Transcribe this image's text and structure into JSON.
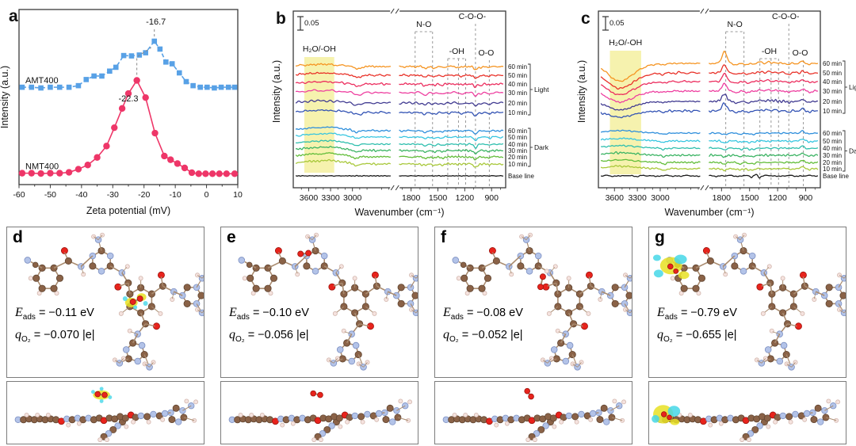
{
  "panel_letters": {
    "a": "a",
    "b": "b",
    "c": "c"
  },
  "chart_data": [
    {
      "id": "a",
      "type": "line",
      "xlabel": "Zeta potential (mV)",
      "ylabel": "Intensity (a.u.)",
      "xlim": [
        -60,
        10
      ],
      "xticks": [
        -60,
        -50,
        -40,
        -30,
        -20,
        -10,
        0,
        10
      ],
      "series": [
        {
          "name": "AMT400",
          "color": "#58a1e6",
          "marker": "square",
          "line_style": "dashed",
          "peak_label": "-16.7",
          "peak_x": -16.7,
          "x": [
            -59,
            -56,
            -53,
            -50,
            -47,
            -44,
            -41,
            -38.5,
            -36,
            -33.5,
            -31,
            -29,
            -26.5,
            -24,
            -21.5,
            -19.5,
            -16.7,
            -14.9,
            -13,
            -11,
            -8.7,
            -6.5,
            -4.3,
            -2,
            0.2,
            2.5,
            4.7,
            7,
            9
          ],
          "y": [
            0.556,
            0.556,
            0.552,
            0.556,
            0.556,
            0.556,
            0.565,
            0.6,
            0.62,
            0.62,
            0.648,
            0.67,
            0.737,
            0.735,
            0.74,
            0.753,
            0.819,
            0.774,
            0.7,
            0.69,
            0.638,
            0.588,
            0.565,
            0.556,
            0.556,
            0.552,
            0.556,
            0.556,
            0.556
          ]
        },
        {
          "name": "NMT400",
          "color": "#ee3668",
          "marker": "circle",
          "line_style": "solid",
          "peak_label": "-22.3",
          "peak_x": -22.3,
          "x": [
            -59,
            -56,
            -53,
            -50,
            -47,
            -44,
            -41,
            -38,
            -35,
            -32,
            -29.5,
            -27,
            -25,
            -22.3,
            -19.5,
            -16.5,
            -13.5,
            -11.5,
            -9.3,
            -7,
            -4.7,
            -2.5,
            -0.3,
            1.9,
            4.1,
            6.4,
            9
          ],
          "y": [
            0.065,
            0.065,
            0.063,
            0.065,
            0.065,
            0.07,
            0.088,
            0.112,
            0.155,
            0.22,
            0.325,
            0.435,
            0.52,
            0.595,
            0.497,
            0.294,
            0.163,
            0.142,
            0.12,
            0.095,
            0.068,
            0.062,
            0.062,
            0.062,
            0.062,
            0.062,
            0.062
          ]
        }
      ]
    },
    {
      "id": "b",
      "type": "line-stack",
      "profile": "b",
      "xlabel": "Wavenumber (cm⁻¹)",
      "ylabel": "Intensity (a.u.)",
      "scale_bar": "0.05",
      "axis_break": true,
      "xticks": [
        3600,
        3300,
        3000,
        1800,
        1500,
        1200,
        900
      ],
      "band": {
        "label": "H₂O/-OH",
        "from": 3660,
        "to": 3250,
        "color": "#f5f0a0"
      },
      "annotations": [
        {
          "label": "N-O",
          "style": "box",
          "lines_cm": [
            1755,
            1560
          ]
        },
        {
          "label": "-OH",
          "style": "box",
          "lines_cm": [
            1390,
            1270,
            1190
          ]
        },
        {
          "label": "C-O-O-",
          "style": "line",
          "lines_cm": [
            1080
          ]
        },
        {
          "label": "O-O",
          "style": "line",
          "lines_cm": [
            925
          ]
        }
      ],
      "groups": [
        {
          "label": "Light",
          "series": [
            {
              "label": "60 min",
              "color": "#f59421"
            },
            {
              "label": "50 min",
              "color": "#e93229"
            },
            {
              "label": "40 min",
              "color": "#ec2d5e"
            },
            {
              "label": "30 min",
              "color": "#ee3fa0"
            },
            {
              "label": "20 min",
              "color": "#423c92"
            },
            {
              "label": "10 min",
              "color": "#3353b4"
            }
          ]
        },
        {
          "label": "Dark",
          "series": [
            {
              "label": "60 min",
              "color": "#2f8fdc"
            },
            {
              "label": "50 min",
              "color": "#38c6e0"
            },
            {
              "label": "40 min",
              "color": "#2fbfae"
            },
            {
              "label": "30 min",
              "color": "#3cb464"
            },
            {
              "label": "20 min",
              "color": "#62bd3a"
            },
            {
              "label": "10 min",
              "color": "#a8c83a"
            }
          ]
        }
      ],
      "baseline": {
        "label": "Base line",
        "color": "#1a1a1a"
      }
    },
    {
      "id": "c",
      "type": "line-stack",
      "profile": "c",
      "xlabel": "Wavenumber (cm⁻¹)",
      "ylabel": "Intensity (a.u.)",
      "scale_bar": "0.05",
      "axis_break": true,
      "xticks": [
        3600,
        3300,
        3000,
        1800,
        1500,
        1200,
        900
      ],
      "band": {
        "label": "H₂O/-OH",
        "from": 3660,
        "to": 3250,
        "color": "#f5f0a0"
      },
      "annotations": [
        {
          "label": "N-O",
          "style": "box",
          "lines_cm": [
            1755,
            1560
          ]
        },
        {
          "label": "-OH",
          "style": "box",
          "lines_cm": [
            1390,
            1270,
            1190
          ]
        },
        {
          "label": "C-O-O-",
          "style": "line",
          "lines_cm": [
            1080
          ]
        },
        {
          "label": "O-O",
          "style": "line",
          "lines_cm": [
            925
          ]
        }
      ],
      "groups": [
        {
          "label": "Light",
          "series": [
            {
              "label": "60 min",
              "color": "#f59421"
            },
            {
              "label": "50 min",
              "color": "#e93229"
            },
            {
              "label": "40 min",
              "color": "#ec2d5e"
            },
            {
              "label": "30 min",
              "color": "#ee3fa0"
            },
            {
              "label": "20 min",
              "color": "#423c92"
            },
            {
              "label": "10 min",
              "color": "#3353b4"
            }
          ]
        },
        {
          "label": "Dark",
          "series": [
            {
              "label": "60 min",
              "color": "#2f8fdc"
            },
            {
              "label": "50 min",
              "color": "#38c6e0"
            },
            {
              "label": "40 min",
              "color": "#2fbfae"
            },
            {
              "label": "30 min",
              "color": "#3cb464"
            },
            {
              "label": "20 min",
              "color": "#62bd3a"
            },
            {
              "label": "10 min",
              "color": "#a8c83a"
            }
          ]
        }
      ],
      "baseline": {
        "label": "Base line",
        "color": "#1a1a1a"
      }
    }
  ],
  "dft": {
    "symbols": {
      "e_sym": "E",
      "e_sub": "ads",
      "q_sym": "q",
      "q_sub": "O₂"
    },
    "panels": [
      {
        "letter": "d",
        "eads": "= −0.11 eV",
        "qo2": "= −0.070 |e|",
        "o2_site": "central-ring",
        "isosurface": true
      },
      {
        "letter": "e",
        "eads": "= −0.10 eV",
        "qo2": "= −0.056 |e|",
        "o2_site": "triazine-top",
        "isosurface": false
      },
      {
        "letter": "f",
        "eads": "= −0.08 eV",
        "qo2": "= −0.052 |e|",
        "o2_site": "amide-bridge",
        "isosurface": false
      },
      {
        "letter": "g",
        "eads": "= −0.79 eV",
        "qo2": "= −0.655 |e|",
        "o2_site": "cyano-end",
        "isosurface": true
      }
    ]
  }
}
